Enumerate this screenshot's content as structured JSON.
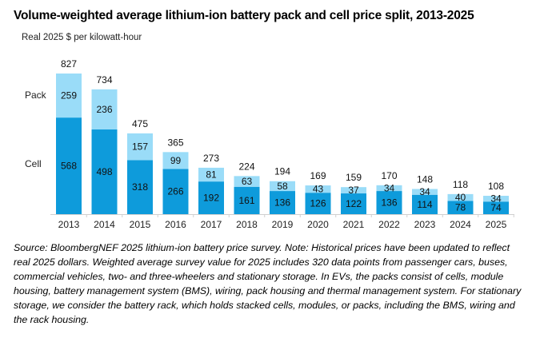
{
  "title": "Volume-weighted average lithium-ion battery pack and cell price split, 2013-2025",
  "source": "Source: BloombergNEF 2025 lithium-ion battery price survey. Note: Historical prices have been updated to reflect real 2025 dollars. Weighted average survey value for 2025 includes 320 data points from passenger cars, buses, commercial vehicles, two- and three-wheelers and stationary storage.  In EVs, the packs consist of cells, module housing, battery management system (BMS), wiring, pack housing and thermal management system. For stationary storage, we consider the battery rack, which holds stacked cells, modules, or packs, including the BMS, wiring and the rack housing.",
  "chart_data": {
    "type": "bar",
    "stacked": true,
    "title": "Volume-weighted average lithium-ion battery pack and cell price split, 2013-2025",
    "ylabel": "Real 2025 $ per kilowatt-hour",
    "xlabel": "",
    "ylim": [
      0,
      850
    ],
    "grid": false,
    "legend": "inline-left",
    "categories": [
      "2013",
      "2014",
      "2015",
      "2016",
      "2017",
      "2018",
      "2019",
      "2020",
      "2021",
      "2022",
      "2023",
      "2024",
      "2025"
    ],
    "series": [
      {
        "name": "Cell",
        "color": "#0E9BDB",
        "values": [
          568,
          498,
          318,
          266,
          192,
          161,
          136,
          126,
          122,
          136,
          114,
          78,
          74
        ]
      },
      {
        "name": "Pack",
        "color": "#9ADCF8",
        "values": [
          259,
          236,
          157,
          99,
          81,
          63,
          58,
          43,
          37,
          34,
          34,
          40,
          34
        ]
      }
    ],
    "totals": [
      827,
      734,
      475,
      365,
      273,
      224,
      194,
      169,
      159,
      170,
      148,
      118,
      108
    ]
  }
}
